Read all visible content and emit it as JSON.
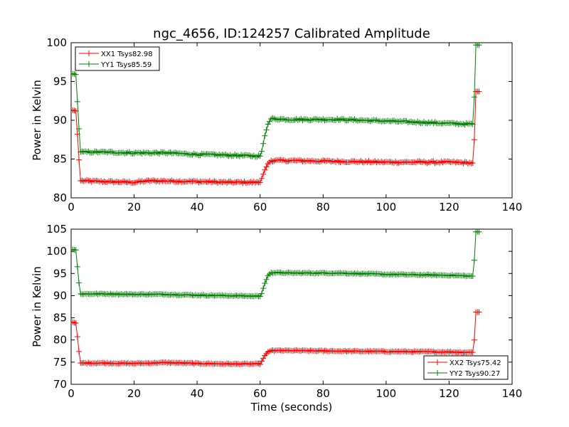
{
  "title": "ngc_4656, ID:124257 Calibrated Amplitude",
  "colors": {
    "xx": "#ff0000",
    "yy": "#008000"
  },
  "chart_data": [
    {
      "type": "line",
      "xlabel": "",
      "ylabel": "Power in Kelvin",
      "xlim": [
        0,
        140
      ],
      "ylim": [
        80,
        100
      ],
      "xticks": [
        "0",
        "20",
        "40",
        "60",
        "80",
        "100",
        "120",
        "140"
      ],
      "yticks": [
        "80",
        "85",
        "90",
        "95",
        "100"
      ],
      "legend": "top-left",
      "grid": false,
      "series": [
        {
          "name": "XX1 Tsys82.98",
          "color": "#ff0000",
          "x": [
            0.5,
            1.5,
            2.2,
            2.7,
            3,
            10,
            20,
            25,
            40,
            50,
            58,
            60,
            60.5,
            61.5,
            62.5,
            63.5,
            70,
            85,
            100,
            120,
            127.5,
            128,
            128.5,
            129.5
          ],
          "y": [
            91.3,
            91.2,
            87.0,
            83.5,
            82.2,
            82.1,
            82.0,
            82.2,
            82.1,
            82.0,
            82.0,
            82.0,
            82.5,
            83.6,
            84.4,
            84.8,
            84.8,
            84.7,
            84.6,
            84.6,
            84.5,
            87.5,
            93.7,
            93.7
          ]
        },
        {
          "name": "YY1 Tsys85.59",
          "color": "#008000",
          "x": [
            0.5,
            1.5,
            2.2,
            2.7,
            3,
            10,
            20,
            30,
            40,
            50,
            58,
            60,
            60.5,
            61.5,
            62.5,
            63.5,
            70,
            85,
            100,
            120,
            127.5,
            128,
            128.5,
            129.5
          ],
          "y": [
            96.0,
            95.9,
            91.0,
            87.5,
            85.9,
            85.9,
            85.8,
            85.8,
            85.6,
            85.5,
            85.4,
            85.4,
            86.0,
            88.0,
            89.5,
            90.2,
            90.1,
            90.1,
            89.9,
            89.6,
            89.5,
            93.0,
            99.7,
            99.7
          ]
        }
      ]
    },
    {
      "type": "line",
      "xlabel": "Time (seconds)",
      "ylabel": "Power in Kelvin",
      "xlim": [
        0,
        140
      ],
      "ylim": [
        70,
        105
      ],
      "xticks": [
        "0",
        "20",
        "40",
        "60",
        "80",
        "100",
        "120",
        "140"
      ],
      "yticks": [
        "70",
        "75",
        "80",
        "85",
        "90",
        "95",
        "100",
        "105"
      ],
      "legend": "bottom-right",
      "grid": false,
      "series": [
        {
          "name": "XX2 Tsys75.42",
          "color": "#ff0000",
          "x": [
            0.5,
            1.5,
            2.2,
            2.7,
            3,
            10,
            20,
            30,
            40,
            50,
            58,
            60,
            60.5,
            61.5,
            62.5,
            63.5,
            70,
            85,
            100,
            120,
            127.5,
            128,
            128.5,
            129.5
          ],
          "y": [
            84.0,
            83.8,
            79.5,
            76.0,
            74.8,
            74.8,
            74.7,
            74.9,
            74.7,
            74.6,
            74.6,
            74.6,
            75.2,
            76.5,
            77.3,
            77.6,
            77.6,
            77.5,
            77.4,
            77.3,
            77.2,
            80.0,
            86.3,
            86.3
          ]
        },
        {
          "name": "YY2 Tsys90.27",
          "color": "#008000",
          "x": [
            0.5,
            1.5,
            2.2,
            2.7,
            3,
            10,
            20,
            30,
            40,
            50,
            58,
            60,
            60.5,
            61.5,
            62.5,
            63.5,
            70,
            85,
            100,
            120,
            127.5,
            128,
            128.5,
            129.5
          ],
          "y": [
            100.4,
            100.3,
            95.0,
            91.5,
            90.4,
            90.4,
            90.3,
            90.3,
            90.1,
            90.0,
            89.9,
            89.9,
            90.5,
            92.8,
            94.5,
            95.2,
            95.1,
            95.1,
            94.8,
            94.6,
            94.4,
            98.0,
            104.4,
            104.4
          ]
        }
      ]
    }
  ]
}
